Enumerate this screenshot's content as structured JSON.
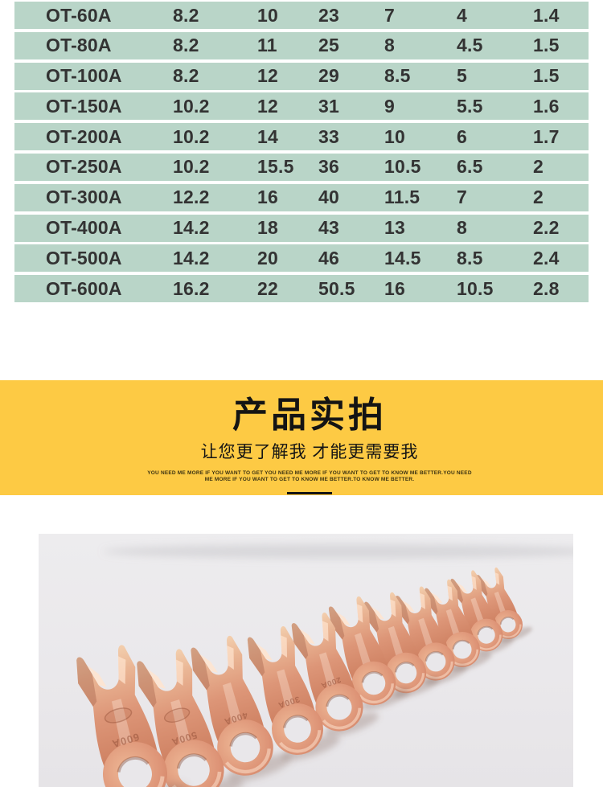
{
  "colors": {
    "row_green": "#b9d5c8",
    "banner_yellow": "#fdca44",
    "table_text": "#333333",
    "photo_background": "#eceaec",
    "copper": "#dd9678"
  },
  "spec_table": {
    "rows": [
      {
        "model": "OT-60A",
        "values": [
          "8.2",
          "10",
          "23",
          "7",
          "4",
          "1.4"
        ]
      },
      {
        "model": "OT-80A",
        "values": [
          "8.2",
          "11",
          "25",
          "8",
          "4.5",
          "1.5"
        ]
      },
      {
        "model": "OT-100A",
        "values": [
          "8.2",
          "12",
          "29",
          "8.5",
          "5",
          "1.5"
        ]
      },
      {
        "model": "OT-150A",
        "values": [
          "10.2",
          "12",
          "31",
          "9",
          "5.5",
          "1.6"
        ]
      },
      {
        "model": "OT-200A",
        "values": [
          "10.2",
          "14",
          "33",
          "10",
          "6",
          "1.7"
        ]
      },
      {
        "model": "OT-250A",
        "values": [
          "10.2",
          "15.5",
          "36",
          "10.5",
          "6.5",
          "2"
        ]
      },
      {
        "model": "OT-300A",
        "values": [
          "12.2",
          "16",
          "40",
          "11.5",
          "7",
          "2"
        ]
      },
      {
        "model": "OT-400A",
        "values": [
          "14.2",
          "18",
          "43",
          "13",
          "8",
          "2.2"
        ]
      },
      {
        "model": "OT-500A",
        "values": [
          "14.2",
          "20",
          "46",
          "14.5",
          "8.5",
          "2.4"
        ]
      },
      {
        "model": "OT-600A",
        "values": [
          "16.2",
          "22",
          "50.5",
          "16",
          "10.5",
          "2.8"
        ]
      }
    ]
  },
  "banner": {
    "title": "产品实拍",
    "subtitle": "让您更了解我 才能更需要我",
    "tagline_line1": "YOU NEED ME MORE IF YOU WANT TO GET YOU NEED ME MORE IF YOU WANT TO GET TO KNOW ME BETTER.YOU NEED",
    "tagline_line2": "ME MORE IF YOU WANT TO GET TO KNOW ME BETTER.TO KNOW ME BETTER."
  },
  "photo": {
    "stamps": [
      "600A",
      "500A",
      "400A",
      "300A",
      "200A"
    ]
  }
}
